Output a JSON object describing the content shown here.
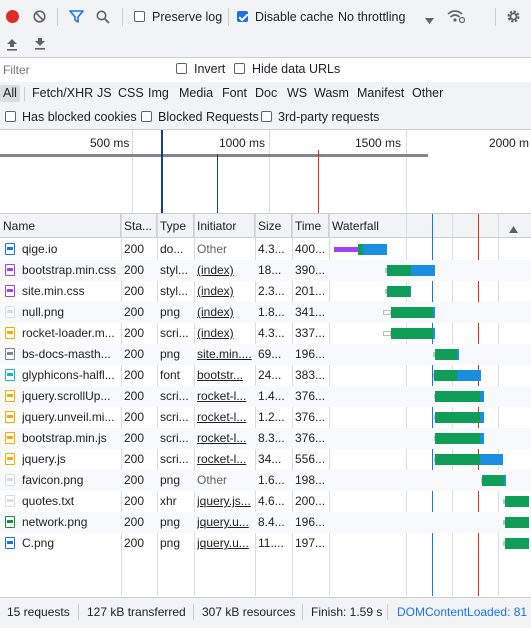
{
  "toolbar": {
    "record_icon": "record-icon",
    "clear_icon": "clear-icon",
    "filter_icon": "filter-icon",
    "search_icon": "search-icon",
    "preserve_log": {
      "label": "Preserve log",
      "checked": false
    },
    "disable_cache": {
      "label": "Disable cache",
      "checked": true
    },
    "throttling": "No throttling",
    "wifi_icon": "network-conditions-icon",
    "settings_icon": "gear-icon",
    "import_icon": "upload-icon",
    "export_icon": "download-icon"
  },
  "filter": {
    "placeholder": "Filter",
    "invert": {
      "label": "Invert",
      "checked": false
    },
    "hide_data_urls": {
      "label": "Hide data URLs",
      "checked": false
    }
  },
  "types": [
    "All",
    "Fetch/XHR",
    "JS",
    "CSS",
    "Img",
    "Media",
    "Font",
    "Doc",
    "WS",
    "Wasm",
    "Manifest",
    "Other"
  ],
  "selected_type": "All",
  "blocking": {
    "has_blocked_cookies": {
      "label": "Has blocked cookies",
      "checked": false
    },
    "blocked_requests": {
      "label": "Blocked Requests",
      "checked": false
    },
    "third_party": {
      "label": "3rd-party requests",
      "checked": false
    }
  },
  "overview": {
    "ticks": [
      "500 ms",
      "1000 ms",
      "1500 ms",
      "2000 m"
    ]
  },
  "columns": {
    "name": "Name",
    "status": "Sta...",
    "type": "Type",
    "initiator": "Initiator",
    "size": "Size",
    "time": "Time",
    "waterfall": "Waterfall"
  },
  "rows": [
    {
      "name": "qige.io",
      "status": "200",
      "type": "do...",
      "initiator": "Other",
      "init_link": false,
      "size": "4.3...",
      "time": "400...",
      "icon": "document-icon",
      "color": "#1a73e8",
      "wait": [
        5,
        10,
        29
      ],
      "recv": [
        34,
        58
      ]
    },
    {
      "name": "bootstrap.min.css",
      "status": "200",
      "type": "styl...",
      "initiator": "(index)",
      "init_link": true,
      "size": "18...",
      "time": "390...",
      "icon": "stylesheet-icon",
      "color": "#a142f4",
      "wait": [
        56,
        58
      ],
      "recv": [
        82,
        106
      ]
    },
    {
      "name": "site.min.css",
      "status": "200",
      "type": "styl...",
      "initiator": "(index)",
      "init_link": true,
      "size": "2.3...",
      "time": "201...",
      "icon": "stylesheet-icon",
      "color": "#a142f4",
      "wait": [
        56,
        58
      ],
      "recv": [
        81,
        82
      ]
    },
    {
      "name": "null.png",
      "status": "200",
      "type": "png",
      "initiator": "(index)",
      "init_link": true,
      "size": "1.8...",
      "time": "341...",
      "icon": "image-icon",
      "color": "#dadce0",
      "wait": [
        54,
        62
      ],
      "recv": [
        104,
        106
      ]
    },
    {
      "name": "rocket-loader.m...",
      "status": "200",
      "type": "scri...",
      "initiator": "(index)",
      "init_link": true,
      "size": "4.3...",
      "time": "337...",
      "icon": "script-icon",
      "color": "#f9ab00",
      "wait": [
        54,
        62
      ],
      "recv": [
        104,
        106
      ]
    },
    {
      "name": "bs-docs-masth...",
      "status": "200",
      "type": "png",
      "initiator": "site.min....",
      "init_link": true,
      "size": "69...",
      "time": "196...",
      "icon": "image-icon",
      "color": "#80868b",
      "wait": [
        104,
        106
      ],
      "recv": [
        128,
        130
      ]
    },
    {
      "name": "glyphicons-halfl...",
      "status": "200",
      "type": "font",
      "initiator": "bootstr...",
      "init_link": true,
      "size": "24...",
      "time": "383...",
      "icon": "font-icon",
      "color": "#12b5cb",
      "wait": [
        104,
        105
      ],
      "recv": [
        128,
        152
      ]
    },
    {
      "name": "jquery.scrollUp...",
      "status": "200",
      "type": "scri...",
      "initiator": "rocket-l...",
      "init_link": true,
      "size": "1.4...",
      "time": "376...",
      "icon": "script-icon",
      "color": "#f9ab00",
      "wait": [
        105,
        106
      ],
      "recv": [
        151,
        155
      ]
    },
    {
      "name": "jquery.unveil.mi...",
      "status": "200",
      "type": "scri...",
      "initiator": "rocket-l...",
      "init_link": true,
      "size": "1.2...",
      "time": "376...",
      "icon": "script-icon",
      "color": "#f9ab00",
      "wait": [
        105,
        106
      ],
      "recv": [
        151,
        155
      ]
    },
    {
      "name": "bootstrap.min.js",
      "status": "200",
      "type": "scri...",
      "initiator": "rocket-l...",
      "init_link": true,
      "size": "8.3...",
      "time": "376...",
      "icon": "script-icon",
      "color": "#f9ab00",
      "wait": [
        105,
        106
      ],
      "recv": [
        151,
        155
      ]
    },
    {
      "name": "jquery.js",
      "status": "200",
      "type": "scri...",
      "initiator": "rocket-l...",
      "init_link": true,
      "size": "34...",
      "time": "556...",
      "icon": "script-icon",
      "color": "#f9ab00",
      "wait": [
        105,
        106
      ],
      "recv": [
        151,
        174
      ]
    },
    {
      "name": "favicon.png",
      "status": "200",
      "type": "png",
      "initiator": "Other",
      "init_link": false,
      "size": "1.6...",
      "time": "198...",
      "icon": "image-icon",
      "color": "#dadce0",
      "wait": [
        152,
        153
      ],
      "recv": [
        175,
        177
      ]
    },
    {
      "name": "quotes.txt",
      "status": "200",
      "type": "xhr",
      "initiator": "jquery.js...",
      "init_link": true,
      "size": "4.6...",
      "time": "200...",
      "icon": "text-icon",
      "color": "#dadce0",
      "wait": [
        174,
        176
      ],
      "recv": [
        200,
        200
      ]
    },
    {
      "name": "network.png",
      "status": "200",
      "type": "png",
      "initiator": "jquery.u...",
      "init_link": true,
      "size": "8.4...",
      "time": "196...",
      "icon": "image-icon",
      "color": "#1e8e3e",
      "wait": [
        174,
        176
      ],
      "recv": [
        200,
        200
      ]
    },
    {
      "name": "C.png",
      "status": "200",
      "type": "png",
      "initiator": "jquery.u...",
      "init_link": true,
      "size": "11....",
      "time": "197...",
      "icon": "image-icon",
      "color": "#1a73e8",
      "wait": [
        174,
        176
      ],
      "recv": [
        200,
        200
      ]
    }
  ],
  "status_bar": {
    "requests": "15 requests",
    "transferred": "127 kB transferred",
    "resources": "307 kB resources",
    "finish": "Finish: 1.59 s",
    "dcl": "DOMContentLoaded: 81"
  },
  "colors": {
    "waiting": "#0f9d58",
    "receiving": "#1a8fe0",
    "queued": "#a142f4",
    "dcl_line": "#1a73e8",
    "load_line": "#d93025"
  }
}
